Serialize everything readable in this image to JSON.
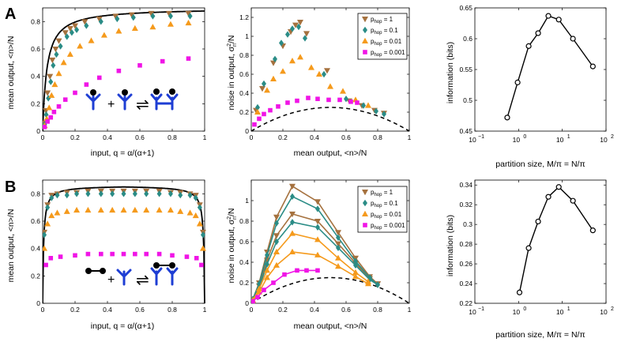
{
  "colors": {
    "brown": "#a5713e",
    "teal": "#2a8c86",
    "orange": "#f59a1c",
    "magenta": "#f015e6",
    "black": "#000000",
    "blue": "#1e3ed4"
  },
  "legend": {
    "entries": [
      {
        "key": "brown",
        "label": "p",
        "sub": "hop",
        "suffix": " = 1",
        "marker": "tri-down"
      },
      {
        "key": "teal",
        "label": "p",
        "sub": "hop",
        "suffix": " = 0.1",
        "marker": "diamond"
      },
      {
        "key": "orange",
        "label": "p",
        "sub": "hop",
        "suffix": " = 0.01",
        "marker": "tri-up"
      },
      {
        "key": "magenta",
        "label": "p",
        "sub": "hop",
        "suffix": " = 0.001",
        "marker": "square"
      }
    ]
  },
  "panel_labels": {
    "a": "A",
    "b": "B"
  },
  "labels": {
    "mean_y": "mean output, <n>/N",
    "input_x": "input, q = α/(α+1)",
    "noise_y_main": "noise in output, σ",
    "noise_y_sup": "2",
    "noise_y_sub": "n",
    "noise_y_end": "/N",
    "mean_x": "mean output, <n>/N",
    "info_y": "information (bits)",
    "partition_x": "partition size, M/π = N/π",
    "log_base": "10",
    "log_exps": [
      "−1",
      "0",
      "1",
      "2"
    ]
  },
  "chart_data": [
    {
      "id": "A1",
      "type": "scatter",
      "xlim": [
        0,
        1
      ],
      "ylim": [
        0,
        0.9
      ],
      "xticks": [
        "0",
        "0.2",
        "0.4",
        "0.6",
        "0.8",
        "1"
      ],
      "yticks": [
        "0",
        "0.2",
        "0.4",
        "0.6",
        "0.8"
      ],
      "theory_line": {
        "type": "binding_curve",
        "max": 0.9,
        "k": 0.026
      },
      "series": [
        {
          "name": "p_hop = 1",
          "color": "brown",
          "marker": "tri-down",
          "x": [
            0.01,
            0.02,
            0.03,
            0.045,
            0.06,
            0.08,
            0.1,
            0.14,
            0.17,
            0.2,
            0.26,
            0.35,
            0.45,
            0.55,
            0.67,
            0.78,
            0.9
          ],
          "y": [
            0.06,
            0.15,
            0.28,
            0.4,
            0.52,
            0.6,
            0.66,
            0.72,
            0.75,
            0.77,
            0.8,
            0.82,
            0.84,
            0.85,
            0.86,
            0.86,
            0.86
          ]
        },
        {
          "name": "p_hop = 0.1",
          "color": "teal",
          "marker": "diamond",
          "x": [
            0.012,
            0.022,
            0.035,
            0.05,
            0.065,
            0.085,
            0.11,
            0.15,
            0.18,
            0.21,
            0.27,
            0.36,
            0.46,
            0.56,
            0.68,
            0.79,
            0.91
          ],
          "y": [
            0.05,
            0.12,
            0.24,
            0.36,
            0.48,
            0.56,
            0.62,
            0.69,
            0.72,
            0.74,
            0.77,
            0.8,
            0.82,
            0.83,
            0.84,
            0.84,
            0.84
          ]
        },
        {
          "name": "p_hop = 0.01",
          "color": "orange",
          "marker": "tri-up",
          "x": [
            0.012,
            0.025,
            0.04,
            0.055,
            0.075,
            0.1,
            0.13,
            0.17,
            0.23,
            0.3,
            0.38,
            0.47,
            0.57,
            0.68,
            0.79,
            0.9
          ],
          "y": [
            0.04,
            0.09,
            0.17,
            0.26,
            0.34,
            0.42,
            0.5,
            0.56,
            0.62,
            0.66,
            0.7,
            0.73,
            0.75,
            0.76,
            0.78,
            0.79
          ]
        },
        {
          "name": "p_hop = 0.001",
          "color": "magenta",
          "marker": "square",
          "x": [
            0.012,
            0.03,
            0.05,
            0.07,
            0.1,
            0.14,
            0.2,
            0.27,
            0.35,
            0.47,
            0.6,
            0.74,
            0.9
          ],
          "y": [
            0.03,
            0.07,
            0.1,
            0.14,
            0.18,
            0.23,
            0.28,
            0.34,
            0.39,
            0.44,
            0.48,
            0.51,
            0.53
          ]
        }
      ]
    },
    {
      "id": "A2",
      "type": "scatter",
      "xlim": [
        0,
        1
      ],
      "ylim": [
        0,
        1.3
      ],
      "xticks": [
        "0",
        "0.2",
        "0.4",
        "0.6",
        "0.8",
        "1"
      ],
      "yticks": [
        "0",
        "0.2",
        "0.4",
        "0.6",
        "0.8",
        "1",
        "1.2"
      ],
      "theory_line": {
        "type": "parabola",
        "dashed": true
      },
      "series": [
        {
          "name": "p_hop = 1",
          "color": "brown",
          "marker": "tri-down",
          "x": [
            0.03,
            0.07,
            0.14,
            0.2,
            0.25,
            0.28,
            0.31,
            0.35,
            0.48,
            0.62,
            0.7,
            0.78,
            0.84
          ],
          "y": [
            0.22,
            0.45,
            0.72,
            0.9,
            1.05,
            1.12,
            1.15,
            1.03,
            0.64,
            0.32,
            0.27,
            0.22,
            0.19
          ]
        },
        {
          "name": "p_hop = 0.1",
          "color": "teal",
          "marker": "diamond",
          "x": [
            0.04,
            0.08,
            0.15,
            0.19,
            0.23,
            0.26,
            0.3,
            0.34,
            0.46,
            0.6,
            0.71,
            0.79,
            0.84
          ],
          "y": [
            0.25,
            0.5,
            0.76,
            0.93,
            1.02,
            1.08,
            1.1,
            0.98,
            0.6,
            0.34,
            0.27,
            0.21,
            0.18
          ]
        },
        {
          "name": "p_hop = 0.01",
          "color": "orange",
          "marker": "tri-up",
          "x": [
            0.04,
            0.1,
            0.14,
            0.2,
            0.26,
            0.31,
            0.38,
            0.43,
            0.5,
            0.58,
            0.66,
            0.74
          ],
          "y": [
            0.2,
            0.43,
            0.55,
            0.63,
            0.74,
            0.78,
            0.67,
            0.6,
            0.47,
            0.42,
            0.33,
            0.27
          ]
        },
        {
          "name": "p_hop = 0.001",
          "color": "magenta",
          "marker": "square",
          "x": [
            0.02,
            0.05,
            0.08,
            0.12,
            0.17,
            0.23,
            0.29,
            0.36,
            0.42,
            0.49,
            0.56,
            0.63,
            0.67
          ],
          "y": [
            0.07,
            0.13,
            0.18,
            0.22,
            0.26,
            0.3,
            0.32,
            0.35,
            0.34,
            0.33,
            0.33,
            0.31,
            0.3
          ]
        }
      ]
    },
    {
      "id": "A3",
      "type": "line",
      "xscale": "log",
      "xlim": [
        0.1,
        100
      ],
      "ylim": [
        0.45,
        0.65
      ],
      "yticks": [
        "0.45",
        "0.5",
        "0.55",
        "0.6",
        "0.65"
      ],
      "series": [
        {
          "name": "information",
          "color": "black",
          "x": [
            0.55,
            0.95,
            1.7,
            2.8,
            4.8,
            8.3,
            17.5,
            50
          ],
          "y": [
            0.472,
            0.529,
            0.588,
            0.609,
            0.637,
            0.631,
            0.6,
            0.555
          ]
        }
      ]
    },
    {
      "id": "B1",
      "type": "scatter",
      "xlim": [
        0,
        1
      ],
      "ylim": [
        0,
        0.9
      ],
      "xticks": [
        "0",
        "0.2",
        "0.4",
        "0.6",
        "0.8",
        "1"
      ],
      "yticks": [
        "0",
        "0.2",
        "0.4",
        "0.6",
        "0.8"
      ],
      "theory_line": {
        "type": "symmetric_curve",
        "max": 0.86,
        "k": 0.006
      },
      "series": [
        {
          "name": "p_hop = 1",
          "color": "brown",
          "marker": "tri-down",
          "x": [
            0.01,
            0.03,
            0.055,
            0.09,
            0.15,
            0.21,
            0.28,
            0.36,
            0.43,
            0.5,
            0.57,
            0.64,
            0.72,
            0.79,
            0.85,
            0.91,
            0.945,
            0.97,
            0.99
          ],
          "y": [
            0.52,
            0.72,
            0.79,
            0.8,
            0.81,
            0.81,
            0.82,
            0.82,
            0.82,
            0.82,
            0.82,
            0.82,
            0.82,
            0.81,
            0.81,
            0.8,
            0.79,
            0.72,
            0.52
          ]
        },
        {
          "name": "p_hop = 0.1",
          "color": "teal",
          "marker": "diamond",
          "x": [
            0.01,
            0.03,
            0.055,
            0.09,
            0.15,
            0.21,
            0.28,
            0.36,
            0.43,
            0.5,
            0.57,
            0.64,
            0.72,
            0.79,
            0.85,
            0.91,
            0.945,
            0.97,
            0.99
          ],
          "y": [
            0.5,
            0.7,
            0.77,
            0.79,
            0.79,
            0.8,
            0.8,
            0.8,
            0.8,
            0.8,
            0.8,
            0.8,
            0.8,
            0.8,
            0.79,
            0.79,
            0.77,
            0.7,
            0.5
          ]
        },
        {
          "name": "p_hop = 0.01",
          "color": "orange",
          "marker": "tri-up",
          "x": [
            0.01,
            0.03,
            0.055,
            0.09,
            0.15,
            0.21,
            0.28,
            0.36,
            0.43,
            0.5,
            0.57,
            0.64,
            0.72,
            0.79,
            0.85,
            0.91,
            0.945,
            0.97,
            0.99
          ],
          "y": [
            0.4,
            0.58,
            0.64,
            0.66,
            0.67,
            0.68,
            0.68,
            0.68,
            0.68,
            0.68,
            0.68,
            0.68,
            0.68,
            0.68,
            0.67,
            0.66,
            0.64,
            0.58,
            0.4
          ]
        },
        {
          "name": "p_hop = 0.001",
          "color": "magenta",
          "marker": "square",
          "x": [
            0.02,
            0.05,
            0.11,
            0.2,
            0.28,
            0.36,
            0.43,
            0.5,
            0.57,
            0.64,
            0.72,
            0.8,
            0.89,
            0.95,
            0.98
          ],
          "y": [
            0.28,
            0.33,
            0.34,
            0.35,
            0.36,
            0.36,
            0.36,
            0.36,
            0.36,
            0.36,
            0.36,
            0.35,
            0.34,
            0.33,
            0.28
          ]
        }
      ]
    },
    {
      "id": "B2",
      "type": "line",
      "xlim": [
        0,
        1
      ],
      "ylim": [
        0,
        1.2
      ],
      "xticks": [
        "0",
        "0.2",
        "0.4",
        "0.6",
        "0.8",
        "1"
      ],
      "yticks": [
        "0",
        "0.2",
        "0.4",
        "0.6",
        "0.8",
        "1"
      ],
      "theory_line": {
        "type": "parabola",
        "dashed": true
      },
      "series": [
        {
          "name": "p_hop = 1",
          "color": "brown",
          "marker": "tri-down",
          "x": [
            0.01,
            0.05,
            0.1,
            0.16,
            0.26,
            0.42,
            0.55,
            0.66,
            0.75,
            0.8
          ],
          "y": [
            0.04,
            0.2,
            0.5,
            0.84,
            1.14,
            0.99,
            0.69,
            0.44,
            0.26,
            0.19
          ]
        },
        {
          "name": "p_hop = 1",
          "color": "brown",
          "marker": "tri-down",
          "x": [
            0.01,
            0.05,
            0.1,
            0.16,
            0.26,
            0.42,
            0.55,
            0.66,
            0.75,
            0.8
          ],
          "y": [
            0.04,
            0.17,
            0.42,
            0.66,
            0.87,
            0.8,
            0.58,
            0.39,
            0.24,
            0.19
          ]
        },
        {
          "name": "p_hop = 0.1",
          "color": "teal",
          "marker": "diamond",
          "x": [
            0.01,
            0.05,
            0.1,
            0.16,
            0.26,
            0.42,
            0.55,
            0.66,
            0.75,
            0.8
          ],
          "y": [
            0.04,
            0.19,
            0.47,
            0.78,
            1.04,
            0.92,
            0.64,
            0.41,
            0.25,
            0.18
          ]
        },
        {
          "name": "p_hop = 0.1",
          "color": "teal",
          "marker": "diamond",
          "x": [
            0.01,
            0.05,
            0.1,
            0.16,
            0.26,
            0.42,
            0.55,
            0.66,
            0.75,
            0.8
          ],
          "y": [
            0.04,
            0.15,
            0.38,
            0.6,
            0.79,
            0.74,
            0.54,
            0.37,
            0.23,
            0.18
          ]
        },
        {
          "name": "p_hop = 0.01",
          "color": "orange",
          "marker": "tri-up",
          "x": [
            0.01,
            0.05,
            0.1,
            0.16,
            0.26,
            0.42,
            0.55,
            0.66,
            0.74
          ],
          "y": [
            0.03,
            0.14,
            0.32,
            0.5,
            0.68,
            0.62,
            0.44,
            0.3,
            0.21
          ]
        },
        {
          "name": "p_hop = 0.01",
          "color": "orange",
          "marker": "tri-up",
          "x": [
            0.01,
            0.05,
            0.1,
            0.16,
            0.26,
            0.42,
            0.55,
            0.66,
            0.74
          ],
          "y": [
            0.03,
            0.11,
            0.25,
            0.37,
            0.5,
            0.47,
            0.36,
            0.26,
            0.19
          ]
        },
        {
          "name": "p_hop = 0.001",
          "color": "magenta",
          "marker": "square",
          "x": [
            0.01,
            0.04,
            0.08,
            0.14,
            0.21,
            0.29,
            0.35,
            0.42
          ],
          "y": [
            0.02,
            0.06,
            0.13,
            0.2,
            0.28,
            0.32,
            0.32,
            0.32
          ]
        }
      ]
    },
    {
      "id": "B3",
      "type": "line",
      "xscale": "log",
      "xlim": [
        0.1,
        100
      ],
      "ylim": [
        0.22,
        0.345
      ],
      "yticks": [
        "0.22",
        "0.24",
        "0.26",
        "0.28",
        "0.3",
        "0.32",
        "0.34"
      ],
      "series": [
        {
          "name": "information",
          "color": "black",
          "x": [
            1.05,
            1.7,
            2.8,
            4.8,
            8.3,
            17.5,
            50
          ],
          "y": [
            0.231,
            0.276,
            0.303,
            0.328,
            0.338,
            0.324,
            0.294
          ]
        }
      ]
    }
  ],
  "insets": {
    "a": {
      "plus": "+",
      "arrows": "⇌"
    },
    "b": {
      "plus": "+",
      "arrows": "⇌"
    }
  }
}
